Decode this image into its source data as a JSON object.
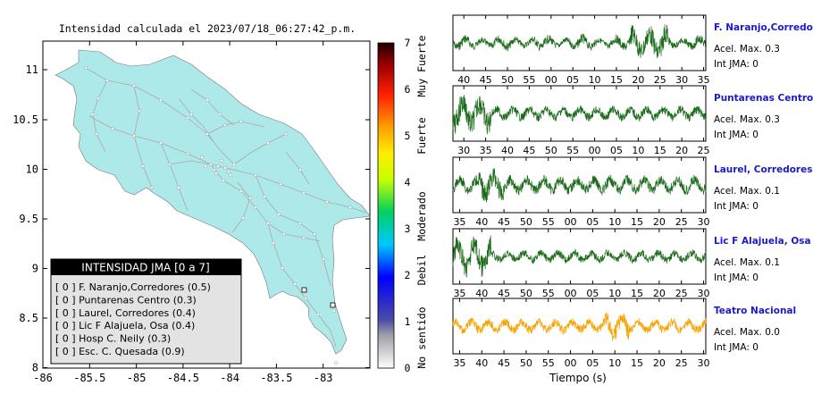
{
  "map": {
    "title": "Intensidad calculada el 2023/07/18_06:27:42_p.m.",
    "x_ticks": [
      "-86",
      "-85.5",
      "-85",
      "-84.5",
      "-84",
      "-83.5",
      "-83"
    ],
    "y_ticks": [
      "11",
      "10.5",
      "10",
      "9.5",
      "9",
      "8.5",
      "8"
    ],
    "land_color": "#aee9ea",
    "legend": {
      "title": "INTENSIDAD JMA [0 a 7]",
      "items": [
        "[ 0 ]  F. Naranjo,Corredores (0.5)",
        "[ 0 ]  Puntarenas Centro (0.3)",
        "[ 0 ]  Laurel, Corredores (0.4)",
        "[ 0 ]  Lic F Alajuela, Osa (0.4)",
        "[ 0 ]  Hosp C. Neily (0.3)",
        "[ 0 ]  Esc. C. Quesada (0.9)"
      ]
    }
  },
  "colorbar": {
    "ticks": [
      "7",
      "6",
      "5",
      "4",
      "3",
      "2",
      "1",
      "0"
    ],
    "labels": [
      "Muy Fuerte",
      "Fuerte",
      "Moderado",
      "Debil",
      "No sentido"
    ]
  },
  "chart_data": {
    "type": "line",
    "xlabel": "Tiempo (s)",
    "panels": [
      {
        "station": "F. Naranjo,Corredores",
        "accel": "Acel. Max. 0.3",
        "int": "Int JMA: 0",
        "color": "#1a6b1a",
        "ticks": [
          "40",
          "45",
          "50",
          "55",
          "00",
          "05",
          "10",
          "15",
          "20",
          "25",
          "30",
          "35"
        ]
      },
      {
        "station": "Puntarenas Centro",
        "accel": "Acel. Max. 0.3",
        "int": "Int JMA: 0",
        "color": "#1a6b1a",
        "ticks": [
          "30",
          "35",
          "40",
          "45",
          "50",
          "55",
          "00",
          "05",
          "10",
          "15",
          "20",
          "25"
        ]
      },
      {
        "station": "Laurel, Corredores",
        "accel": "Acel. Max. 0.1",
        "int": "Int JMA: 0",
        "color": "#1a6b1a",
        "ticks": [
          "35",
          "40",
          "45",
          "50",
          "55",
          "00",
          "05",
          "10",
          "15",
          "20",
          "25",
          "30"
        ]
      },
      {
        "station": "Lic F Alajuela, Osa",
        "accel": "Acel. Max. 0.1",
        "int": "Int JMA: 0",
        "color": "#1a6b1a",
        "ticks": [
          "35",
          "40",
          "45",
          "50",
          "55",
          "00",
          "05",
          "10",
          "15",
          "20",
          "25",
          "30"
        ]
      },
      {
        "station": "Teatro Nacional",
        "accel": "Acel. Max. 0.0",
        "int": "Int JMA: 0",
        "color": "#f5a300",
        "ticks": [
          "35",
          "40",
          "45",
          "50",
          "55",
          "00",
          "05",
          "10",
          "15",
          "20",
          "25",
          "30"
        ]
      }
    ]
  }
}
